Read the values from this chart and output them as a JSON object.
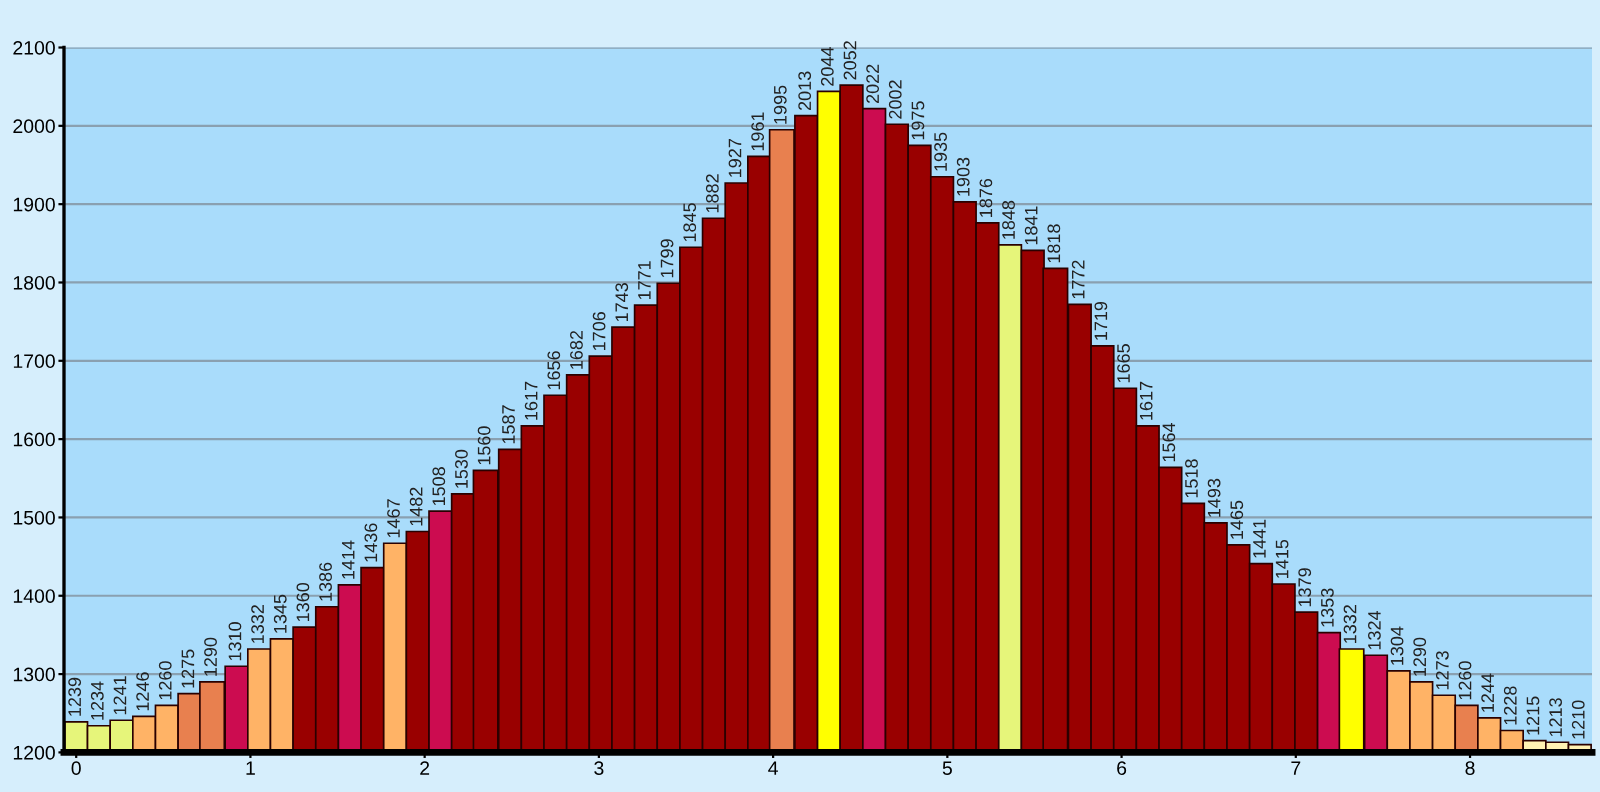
{
  "chart_data": {
    "type": "bar",
    "x": [
      0,
      0.13,
      0.26,
      0.39,
      0.52,
      0.65,
      0.78,
      0.92,
      1.05,
      1.18,
      1.31,
      1.44,
      1.57,
      1.7,
      1.83,
      1.96,
      2.09,
      2.22,
      2.35,
      2.49,
      2.62,
      2.75,
      2.88,
      3.01,
      3.14,
      3.27,
      3.4,
      3.53,
      3.66,
      3.79,
      3.92,
      4.05,
      4.19,
      4.32,
      4.45,
      4.58,
      4.71,
      4.84,
      4.97,
      5.1,
      5.23,
      5.36,
      5.49,
      5.62,
      5.76,
      5.89,
      6.02,
      6.15,
      6.28,
      6.41,
      6.54,
      6.67,
      6.8,
      6.93,
      7.06,
      7.19,
      7.32,
      7.46,
      7.59,
      7.72,
      7.85,
      7.98,
      8.11,
      8.24,
      8.37,
      8.5,
      8.63
    ],
    "values": [
      1239,
      1234,
      1241,
      1246,
      1260,
      1275,
      1290,
      1310,
      1332,
      1345,
      1360,
      1386,
      1414,
      1436,
      1467,
      1482,
      1508,
      1530,
      1560,
      1587,
      1617,
      1656,
      1682,
      1706,
      1743,
      1771,
      1799,
      1845,
      1882,
      1927,
      1961,
      1995,
      2013,
      2044,
      2052,
      2022,
      2002,
      1975,
      1935,
      1903,
      1876,
      1848,
      1841,
      1818,
      1772,
      1719,
      1665,
      1617,
      1564,
      1518,
      1493,
      1465,
      1441,
      1415,
      1379,
      1353,
      1332,
      1324,
      1304,
      1290,
      1273,
      1260,
      1244,
      1228,
      1215,
      1213,
      1210
    ],
    "colors": [
      "#e6f57a",
      "#e6f57a",
      "#e6f57a",
      "#ffb366",
      "#ffb366",
      "#e8804f",
      "#e8804f",
      "#cc0c50",
      "#ffb366",
      "#ffb366",
      "#990000",
      "#990000",
      "#cc0c50",
      "#990000",
      "#ffb366",
      "#990000",
      "#cc0c50",
      "#990000",
      "#990000",
      "#990000",
      "#990000",
      "#990000",
      "#990000",
      "#990000",
      "#990000",
      "#990000",
      "#990000",
      "#990000",
      "#990000",
      "#990000",
      "#990000",
      "#e8804f",
      "#990000",
      "#ffff00",
      "#990000",
      "#cc0c50",
      "#990000",
      "#990000",
      "#990000",
      "#990000",
      "#990000",
      "#e6f57a",
      "#990000",
      "#990000",
      "#990000",
      "#990000",
      "#990000",
      "#990000",
      "#990000",
      "#990000",
      "#990000",
      "#990000",
      "#990000",
      "#990000",
      "#990000",
      "#cc0c50",
      "#ffff00",
      "#cc0c50",
      "#ffb366",
      "#ffb366",
      "#ffb366",
      "#e8804f",
      "#ffb366",
      "#ffb366",
      "#fff2b3",
      "#fff2b3",
      "#fff2b3"
    ],
    "xlim": [
      -0.07,
      8.7
    ],
    "xticks": [
      0,
      1,
      2,
      3,
      4,
      5,
      6,
      7,
      8
    ],
    "ylim": [
      1200,
      2100
    ],
    "yticks": [
      1200,
      1300,
      1400,
      1500,
      1600,
      1700,
      1800,
      1900,
      2000,
      2100
    ],
    "grid": "y",
    "data_labels": true
  }
}
